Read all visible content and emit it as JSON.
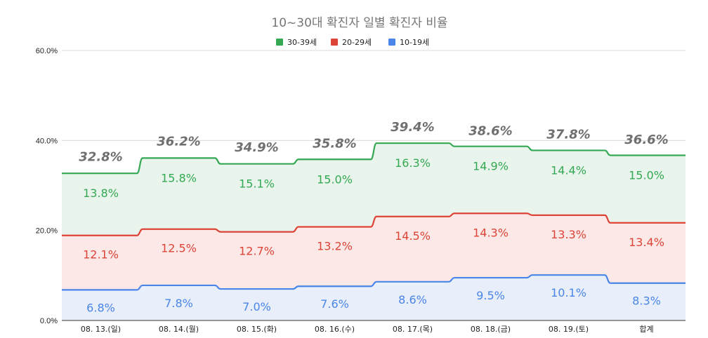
{
  "chart_data": {
    "type": "area",
    "title": "10~30대 확진자 일별 확진자 비율",
    "categories": [
      "08. 13.(일)",
      "08. 14.(월)",
      "08. 15.(화)",
      "08. 16.(수)",
      "08. 17.(목)",
      "08. 18.(금)",
      "08. 19.(토)",
      "합계"
    ],
    "stacked": true,
    "ylim": [
      0,
      60
    ],
    "yticks": [
      "0.0%",
      "20.0%",
      "40.0%",
      "60.0%"
    ],
    "ytick_values": [
      0,
      20,
      40,
      60
    ],
    "grid": true,
    "legend_position": "top",
    "series": [
      {
        "name": "10-19세",
        "color": "#4a86e8",
        "fill": "#e8eefa",
        "values": [
          6.8,
          7.8,
          7.0,
          7.6,
          8.6,
          9.5,
          10.1,
          8.3
        ],
        "labels": [
          "6.8%",
          "7.8%",
          "7.0%",
          "7.6%",
          "8.6%",
          "9.5%",
          "10.1%",
          "8.3%"
        ]
      },
      {
        "name": "20-29세",
        "color": "#db4437",
        "fill": "#fce9e7",
        "values": [
          12.1,
          12.5,
          12.7,
          13.2,
          14.5,
          14.3,
          13.3,
          13.4
        ],
        "labels": [
          "12.1%",
          "12.5%",
          "12.7%",
          "13.2%",
          "14.5%",
          "14.3%",
          "13.3%",
          "13.4%"
        ]
      },
      {
        "name": "30-39세",
        "color": "#34a853",
        "fill": "#e9f5ec",
        "values": [
          13.8,
          15.8,
          15.1,
          15.0,
          16.3,
          14.9,
          14.4,
          15.0
        ],
        "labels": [
          "13.8%",
          "15.8%",
          "15.1%",
          "15.0%",
          "16.3%",
          "14.9%",
          "14.4%",
          "15.0%"
        ]
      }
    ],
    "legend_order": [
      "30-39세",
      "20-29세",
      "10-19세"
    ],
    "totals": [
      32.8,
      36.2,
      34.9,
      35.8,
      39.4,
      38.6,
      37.8,
      36.6
    ],
    "total_labels": [
      "32.8%",
      "36.2%",
      "34.9%",
      "35.8%",
      "39.4%",
      "38.6%",
      "37.8%",
      "36.6%"
    ]
  }
}
